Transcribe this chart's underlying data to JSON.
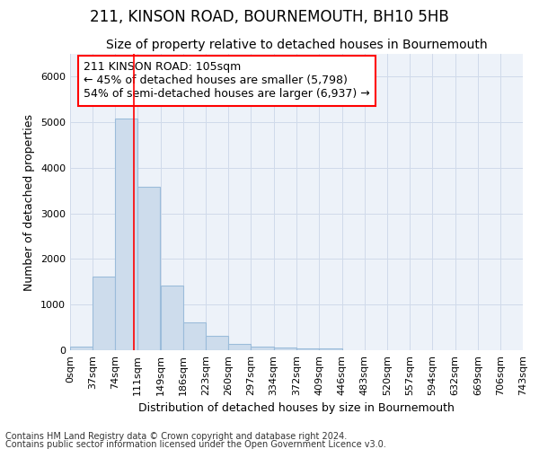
{
  "title": "211, KINSON ROAD, BOURNEMOUTH, BH10 5HB",
  "subtitle": "Size of property relative to detached houses in Bournemouth",
  "xlabel": "Distribution of detached houses by size in Bournemouth",
  "ylabel": "Number of detached properties",
  "footnote1": "Contains HM Land Registry data © Crown copyright and database right 2024.",
  "footnote2": "Contains public sector information licensed under the Open Government Licence v3.0.",
  "annotation_line1": "211 KINSON ROAD: 105sqm",
  "annotation_line2": "← 45% of detached houses are smaller (5,798)",
  "annotation_line3": "54% of semi-detached houses are larger (6,937) →",
  "bar_left_edges": [
    0,
    37,
    74,
    111,
    149,
    186,
    223,
    260,
    297,
    334,
    372,
    409,
    446,
    483,
    520,
    557,
    594,
    632,
    669,
    706
  ],
  "bar_widths": [
    37,
    37,
    37,
    37,
    37,
    37,
    37,
    37,
    37,
    37,
    37,
    37,
    37,
    37,
    37,
    37,
    37,
    37,
    37,
    37
  ],
  "bar_heights": [
    70,
    1620,
    5080,
    3580,
    1420,
    620,
    310,
    140,
    80,
    55,
    45,
    40,
    0,
    0,
    0,
    0,
    0,
    0,
    0,
    0
  ],
  "bar_color": "#cddcec",
  "bar_edgecolor": "#9bbcda",
  "x_tick_labels": [
    "0sqm",
    "37sqm",
    "74sqm",
    "111sqm",
    "149sqm",
    "186sqm",
    "223sqm",
    "260sqm",
    "297sqm",
    "334sqm",
    "372sqm",
    "409sqm",
    "446sqm",
    "483sqm",
    "520sqm",
    "557sqm",
    "594sqm",
    "632sqm",
    "669sqm",
    "706sqm",
    "743sqm"
  ],
  "ylim": [
    0,
    6500
  ],
  "xlim": [
    0,
    743
  ],
  "red_line_x": 105,
  "grid_color": "#d0daea",
  "background_color": "#edf2f9",
  "title_fontsize": 12,
  "subtitle_fontsize": 10,
  "axis_label_fontsize": 9,
  "tick_fontsize": 8,
  "annotation_fontsize": 9,
  "footnote_fontsize": 7
}
